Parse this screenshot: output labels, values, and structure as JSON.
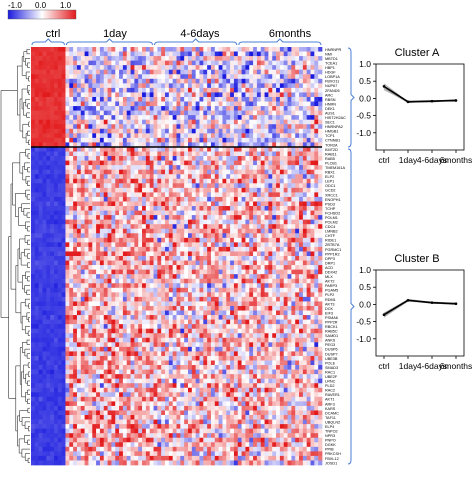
{
  "colorbar": {
    "ticks": [
      "-1.0",
      "0.0",
      "1.0"
    ],
    "colors": [
      "#1a1adf",
      "#ffffff",
      "#e31a1c"
    ]
  },
  "heatmap": {
    "groups": [
      "ctrl",
      "1day",
      "4-6days",
      "6months"
    ],
    "cluster_a_genes": [
      "HNRNPR",
      "NMI",
      "MBTD1",
      "TCEA1",
      "HBP1",
      "HDGF",
      "LOBP1A",
      "FBXO11",
      "NUP67",
      "ZFAND5",
      "ARC",
      "RBSN",
      "HNRN",
      "DEK1",
      "AUS1",
      "HIST2H2AC",
      "SEC1",
      "HNRNPA2",
      "HMGB1",
      "TCP1",
      "CTNNB1",
      "TOR2A"
    ],
    "cluster_b_genes": [
      "KMT2D",
      "RAB11",
      "RAB5",
      "PLCB1",
      "TMEM161A",
      "RBX1",
      "ELP2",
      "LEP1",
      "ODC1",
      "GCD2",
      "XRCC1",
      "ENOPH1",
      "PSD3",
      "TCHP",
      "FCHSD2",
      "POLM1",
      "POLM2",
      "CDC4",
      "LMNB2",
      "CHTF",
      "RIDE1",
      "ZBTB7A",
      "PGRMC1",
      "PPP1R2",
      "DPP3",
      "DRP1",
      "ACD",
      "DDX42",
      "MLX",
      "AKT2",
      "PARP3",
      "PGAM5",
      "PLP2",
      "RDM1",
      "AKT3",
      "DCK",
      "EIF3",
      "PSMA6",
      "PPP2R",
      "RBCK1",
      "RAB5C",
      "SAMD1",
      "ANKS",
      "PEG3",
      "DUSP6",
      "DUSP7",
      "UBE3B",
      "POLE",
      "SMAD3",
      "RAC1",
      "UBE2F",
      "LRNC",
      "PLD2",
      "RAC2",
      "RAVER1",
      "AKT1",
      "ARF3",
      "KARS",
      "DCAMC",
      "TAF11",
      "UBQLN2",
      "ELP4",
      "TNPO2",
      "NPR3",
      "PNPO",
      "DGKK",
      "PPIB",
      "PRKCSH",
      "FBXL12",
      "JOSD1"
    ]
  },
  "chart_data": [
    {
      "type": "heatmap",
      "title": "",
      "columns": [
        "ctrl",
        "1day",
        "4-6days",
        "6months"
      ],
      "column_counts": [
        9,
        23,
        22,
        22
      ],
      "row_clusters": [
        "Cluster A",
        "Cluster B"
      ],
      "row_counts": [
        22,
        70
      ],
      "mean_values": {
        "Cluster A": [
          0.9,
          -0.1,
          -0.1,
          -0.1
        ],
        "Cluster B": [
          -0.85,
          0.3,
          0.2,
          0.2
        ]
      },
      "color_range": [
        -1.0,
        1.0
      ]
    },
    {
      "type": "line",
      "title": "Cluster A",
      "categories": [
        "ctrl",
        "1day",
        "4-6days",
        "6months"
      ],
      "series": [
        {
          "values": [
            0.35,
            -0.1,
            -0.08,
            -0.06
          ]
        }
      ],
      "xlabel": "",
      "ylabel": "",
      "ylim": [
        -1.5,
        1.0
      ],
      "yticks": [
        1.0,
        0.5,
        0.0,
        -0.5,
        -1.0
      ]
    },
    {
      "type": "line",
      "title": "Cluster B",
      "categories": [
        "ctrl",
        "1day",
        "4-6days",
        "6months"
      ],
      "series": [
        {
          "values": [
            -0.3,
            0.12,
            0.05,
            0.02
          ]
        }
      ],
      "xlabel": "",
      "ylabel": "",
      "ylim": [
        -1.5,
        1.0
      ],
      "yticks": [
        1.0,
        0.5,
        0.0,
        -0.5,
        -1.0
      ]
    }
  ]
}
